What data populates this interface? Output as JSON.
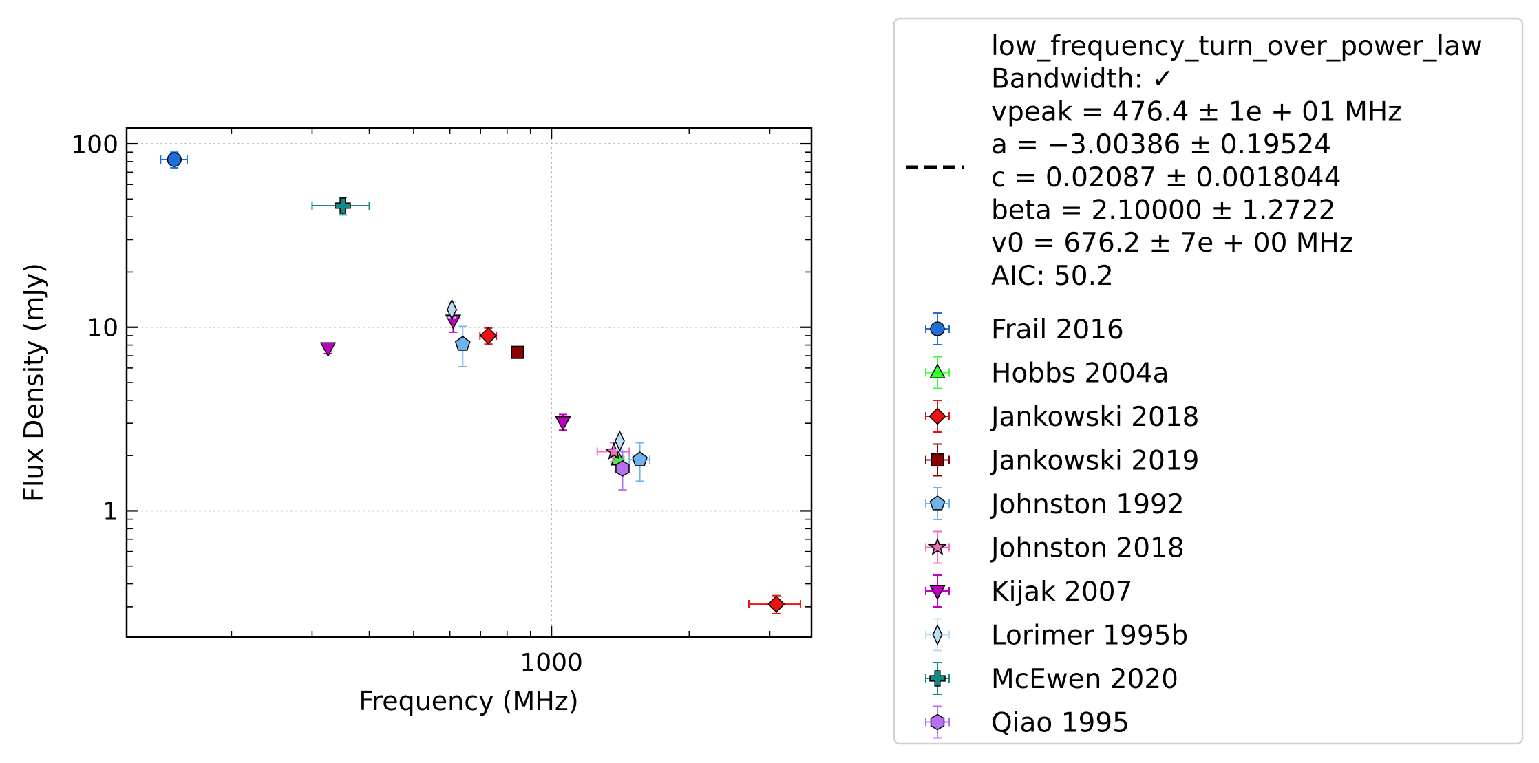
{
  "chart_data": {
    "type": "scatter",
    "title": "",
    "xlabel": "Frequency (MHz)",
    "ylabel": "Flux Density (mJy)",
    "xscale": "log",
    "yscale": "log",
    "xlim": [
      118,
      3700
    ],
    "ylim": [
      0.205,
      122
    ],
    "xticks": [
      {
        "value": 1000,
        "label": "1000"
      }
    ],
    "yticks": [
      {
        "value": 1,
        "label": "1"
      },
      {
        "value": 10,
        "label": "10"
      },
      {
        "value": 100,
        "label": "100"
      }
    ],
    "grid": true,
    "legend_position": "outside-right",
    "model": {
      "name": "low_frequency_turn_over_power_law",
      "legend_lines": [
        "low_frequency_turn_over_power_law",
        "Bandwidth: ✓",
        "vpeak = 476.4 ± 1e + 01 MHz",
        "a = −3.00386 ± 0.19524",
        "c = 0.02087 ± 0.0018044",
        "beta = 2.10000 ± 1.2722",
        "v0 = 676.2 ± 7e + 00 MHz",
        "AIC: 50.2"
      ],
      "params": {
        "vpeak": 476.4,
        "a": -3.00386,
        "c": 0.02087,
        "beta": 2.1,
        "v0": 676.2
      },
      "line_color": "#000000",
      "band_color": "#f8bf8a"
    },
    "series": [
      {
        "name": "Frail 2016",
        "marker": "circle",
        "color": "#1f6fd6",
        "points": [
          {
            "x": 150,
            "y": 82,
            "xerr": [
              10,
              10
            ],
            "yerr": [
              8,
              8
            ]
          }
        ]
      },
      {
        "name": "Hobbs 2004a",
        "marker": "triangle-up",
        "color": "#33ff33",
        "points": [
          {
            "x": 1400,
            "y": 1.9,
            "xerr": [
              40,
              40
            ],
            "yerr": [
              0.25,
              0.25
            ]
          }
        ]
      },
      {
        "name": "Jankowski 2018",
        "marker": "diamond",
        "color": "#ee1111",
        "points": [
          {
            "x": 728,
            "y": 9.0,
            "xerr": [
              30,
              30
            ],
            "yerr": [
              0.9,
              0.9
            ]
          },
          {
            "x": 3100,
            "y": 0.31,
            "xerr": [
              400,
              400
            ],
            "yerr": [
              0.035,
              0.035
            ]
          }
        ]
      },
      {
        "name": "Jankowski 2019",
        "marker": "square",
        "color": "#8b0000",
        "points": [
          {
            "x": 843,
            "y": 7.3,
            "xerr": [
              0,
              0
            ],
            "yerr": [
              0.4,
              0.4
            ]
          }
        ]
      },
      {
        "name": "Johnston 1992",
        "marker": "pentagon",
        "color": "#6fb3ee",
        "points": [
          {
            "x": 640,
            "y": 8.1,
            "xerr": [
              0,
              0
            ],
            "yerr": [
              2.0,
              2.0
            ]
          },
          {
            "x": 1560,
            "y": 1.9,
            "xerr": [
              80,
              80
            ],
            "yerr": [
              0.45,
              0.45
            ]
          }
        ]
      },
      {
        "name": "Johnston 2018",
        "marker": "star",
        "color": "#f070c0",
        "points": [
          {
            "x": 1369,
            "y": 2.1,
            "xerr": [
              110,
              110
            ],
            "yerr": [
              0.25,
              0.25
            ]
          }
        ]
      },
      {
        "name": "Kijak 2007",
        "marker": "triangle-down",
        "color": "#c000c0",
        "points": [
          {
            "x": 325,
            "y": 7.7,
            "xerr": [
              0,
              0
            ],
            "yerr": [
              0.5,
              0.5
            ]
          },
          {
            "x": 610,
            "y": 10.9,
            "xerr": [
              0,
              0
            ],
            "yerr": [
              1.5,
              1.5
            ]
          },
          {
            "x": 1060,
            "y": 3.05,
            "xerr": [
              0,
              0
            ],
            "yerr": [
              0.3,
              0.3
            ]
          }
        ]
      },
      {
        "name": "Lorimer 1995b",
        "marker": "thin-diamond",
        "color": "#bcdcf4",
        "points": [
          {
            "x": 606,
            "y": 12.5,
            "xerr": [
              0,
              0
            ],
            "yerr": [
              1.2,
              1.2
            ]
          },
          {
            "x": 1410,
            "y": 2.4,
            "xerr": [
              0,
              0
            ],
            "yerr": [
              0.25,
              0.25
            ]
          }
        ]
      },
      {
        "name": "McEwen 2020",
        "marker": "plus",
        "color": "#138a8a",
        "points": [
          {
            "x": 350,
            "y": 46,
            "xerr": [
              50,
              50
            ],
            "yerr": [
              5,
              5
            ]
          }
        ]
      },
      {
        "name": "Qiao 1995",
        "marker": "hexagon",
        "color": "#b56ff0",
        "points": [
          {
            "x": 1430,
            "y": 1.7,
            "xerr": [
              0,
              0
            ],
            "yerr": [
              0.4,
              0.4
            ]
          }
        ]
      }
    ]
  }
}
